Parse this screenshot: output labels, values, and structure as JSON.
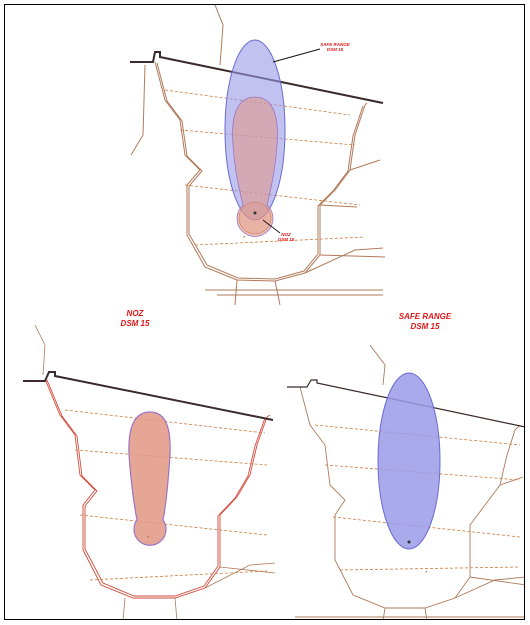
{
  "colors": {
    "outline_brown": "#b07a5a",
    "outline_red": "#d24a3a",
    "contour_dash": "#cf7a3c",
    "fence_dark": "#3a2a2a",
    "safe_range_fill": "#9a9ae8",
    "safe_range_stroke": "#6a6ad2",
    "noz_fill": "#e09684",
    "noz_stroke": "#9a74c8",
    "label_red": "#e01818"
  },
  "icons": {
    "origin_marker": "dot",
    "small_marker": "asterisk"
  },
  "top_panel": {
    "callout_safe_range": {
      "line1": "SAFE RANGE",
      "line2": "DSM 15"
    },
    "callout_noz": {
      "line1": "NOZ",
      "line2": "DSM 15"
    }
  },
  "left_panel": {
    "title_line1": "NOZ",
    "title_line2": "DSM 15"
  },
  "right_panel": {
    "title_line1": "SAFE RANGE",
    "title_line2": "DSM 15"
  }
}
